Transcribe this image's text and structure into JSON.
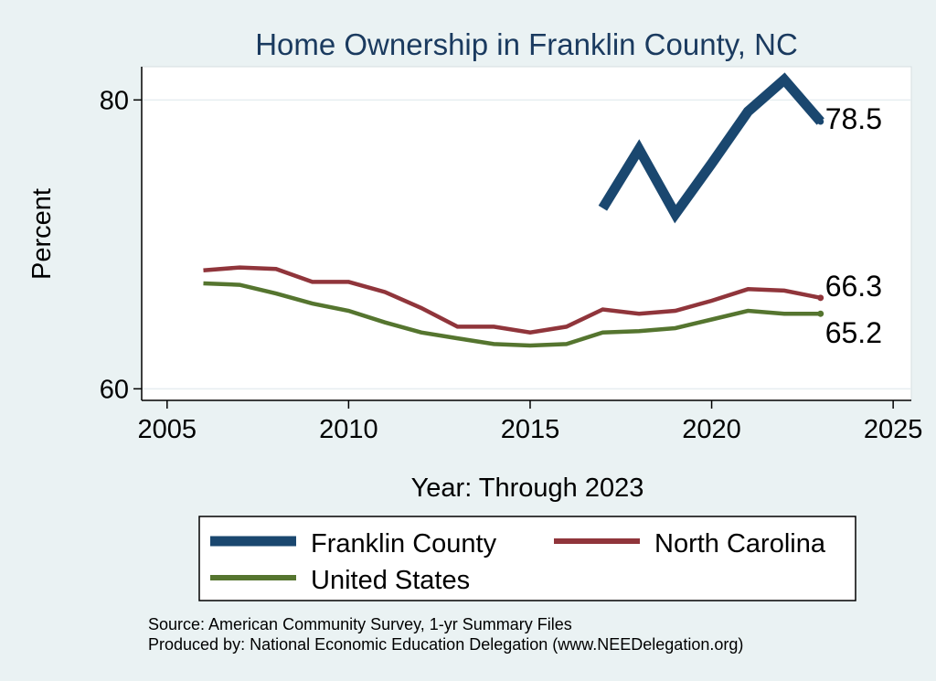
{
  "chart_data": {
    "type": "line",
    "title": "Home Ownership in Franklin County, NC",
    "xlabel": "Year: Through 2023",
    "ylabel": "Percent",
    "xlim": [
      2004.3,
      2025.5
    ],
    "ylim": [
      59.2,
      82.3
    ],
    "xticks": [
      2005,
      2010,
      2015,
      2020,
      2025
    ],
    "yticks": [
      60,
      80
    ],
    "grid": true,
    "series": [
      {
        "name": "Franklin County",
        "color": "#1a476f",
        "stroke_weight": "thick",
        "x": [
          2017,
          2018,
          2019,
          2020,
          2021,
          2022,
          2023
        ],
        "values": [
          72.5,
          76.6,
          72.1,
          75.6,
          79.2,
          81.4,
          78.5
        ],
        "end_label": "78.5"
      },
      {
        "name": "North Carolina",
        "color": "#90353b",
        "stroke_weight": "medium",
        "x": [
          2006,
          2007,
          2008,
          2009,
          2010,
          2011,
          2012,
          2013,
          2014,
          2015,
          2016,
          2017,
          2018,
          2019,
          2020,
          2021,
          2022,
          2023
        ],
        "values": [
          68.2,
          68.4,
          68.3,
          67.4,
          67.4,
          66.7,
          65.6,
          64.3,
          64.3,
          63.9,
          64.3,
          65.5,
          65.2,
          65.4,
          66.1,
          66.9,
          66.8,
          66.3
        ],
        "end_label": "66.3"
      },
      {
        "name": "United States",
        "color": "#55752f",
        "stroke_weight": "medium",
        "x": [
          2006,
          2007,
          2008,
          2009,
          2010,
          2011,
          2012,
          2013,
          2014,
          2015,
          2016,
          2017,
          2018,
          2019,
          2020,
          2021,
          2022,
          2023
        ],
        "values": [
          67.3,
          67.2,
          66.6,
          65.9,
          65.4,
          64.6,
          63.9,
          63.5,
          63.1,
          63.0,
          63.1,
          63.9,
          64.0,
          64.2,
          64.8,
          65.4,
          65.2,
          65.2
        ],
        "end_label": "65.2"
      }
    ],
    "legend": {
      "placement": "bottom",
      "entries": [
        "Franklin County",
        "North Carolina",
        "United States"
      ]
    }
  },
  "footer": {
    "source": "Source: American Community Survey, 1-yr Summary Files",
    "produced_by": "Produced by: National Economic Education Delegation (www.NEEDelegation.org)"
  },
  "colors": {
    "background": "#eaf2f3",
    "plot_background": "#ffffff",
    "gridline": "#e6eef0",
    "title": "#1a3a5f"
  }
}
